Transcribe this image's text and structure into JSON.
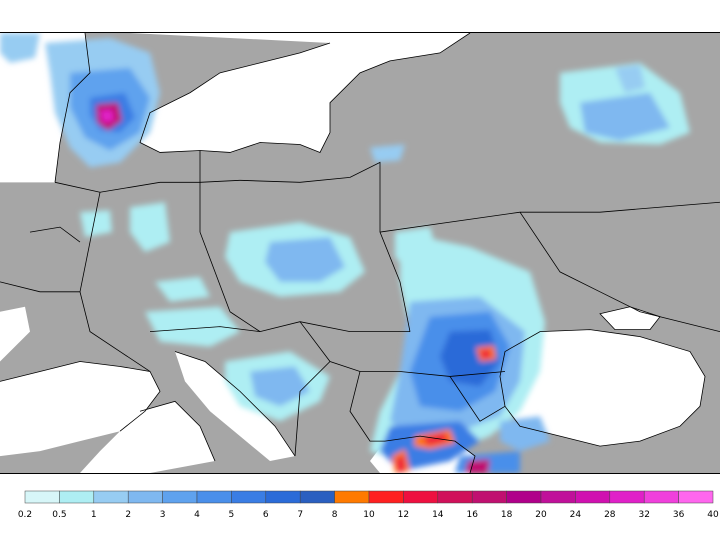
{
  "map": {
    "land_color": "#a6a6a6",
    "sea_color": "#ffffff",
    "border_color": "#000000"
  },
  "precip_palette": [
    "#d7f6f8",
    "#aeeef3",
    "#97ccf2",
    "#7fb8f0",
    "#5fa2ee",
    "#4a8fea",
    "#3a7de4",
    "#2b6bd8",
    "#2a5fc0",
    "#ff7a00",
    "#ff2020",
    "#ee1040",
    "#d0105a",
    "#c01070",
    "#b0008a",
    "#c0109a",
    "#d010b0",
    "#e020c8",
    "#f040dc",
    "#ff66ee"
  ],
  "legend": {
    "labels": [
      "0.2",
      "0.5",
      "1",
      "2",
      "3",
      "4",
      "5",
      "6",
      "7",
      "8",
      "10",
      "12",
      "14",
      "16",
      "18",
      "20",
      "24",
      "28",
      "32",
      "36",
      "40"
    ]
  }
}
